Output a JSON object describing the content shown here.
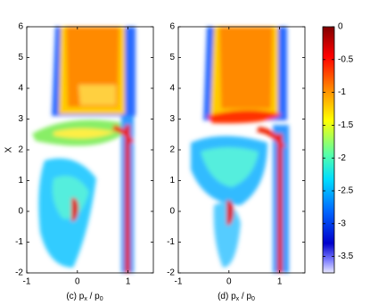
{
  "chart_data": [
    {
      "type": "heatmap",
      "xlabel_parts": [
        "(c) p",
        "x",
        " / p",
        "0"
      ],
      "ylabel": "X",
      "xlim": [
        -1,
        1.5
      ],
      "ylim": [
        -2,
        6
      ],
      "xticks": [
        -1,
        0,
        1
      ],
      "yticks": [
        -2,
        -1,
        0,
        1,
        2,
        3,
        4,
        5,
        6
      ]
    },
    {
      "type": "heatmap",
      "xlabel_parts": [
        "(d) p",
        "x",
        " / p",
        "0"
      ],
      "xlim": [
        -1,
        1.5
      ],
      "ylim": [
        -2,
        6
      ],
      "xticks": [
        -1,
        0,
        1
      ],
      "yticks": [
        -2,
        -1,
        0,
        1,
        2,
        3,
        4,
        5,
        6
      ]
    },
    {
      "type": "colorbar",
      "ylim": [
        -3.75,
        0
      ],
      "yticks": [
        0,
        -0.5,
        -1,
        -1.5,
        -2,
        -2.5,
        -3,
        -3.5
      ]
    }
  ]
}
